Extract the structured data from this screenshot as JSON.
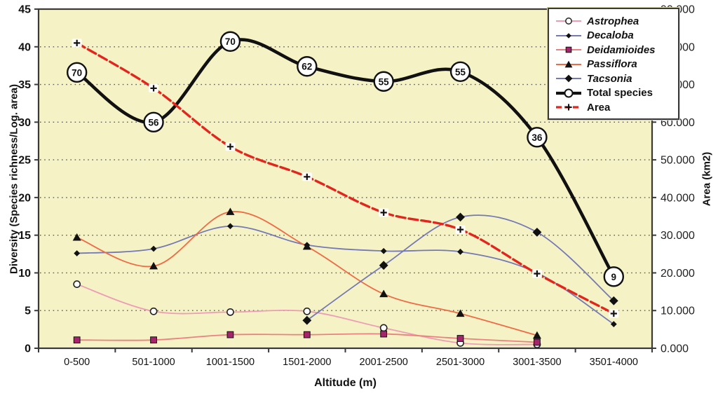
{
  "figure": {
    "type": "line-chart-figure",
    "x_axis_title": "Altitude (m)",
    "y_axis_left_title": "Diversity (Species richness/Log. area)",
    "y_axis_right_title": "Area (km2)"
  },
  "chart_data": {
    "type": "line",
    "title": "",
    "xlabel": "Altitude (m)",
    "ylabel_left": "Diversity (Species richness/Log. area)",
    "ylabel_right": "Area (km2)",
    "categories": [
      "0-500",
      "501-1000",
      "1001-1500",
      "1501-2000",
      "2001-2500",
      "2501-3000",
      "3001-3500",
      "3501-4000"
    ],
    "y_left_axis": {
      "min": 0,
      "max": 45,
      "step": 5,
      "ticks": [
        "0",
        "5",
        "10",
        "15",
        "20",
        "25",
        "30",
        "35",
        "40",
        "45"
      ]
    },
    "y_right_axis": {
      "min": 0,
      "max": 90000,
      "step": 10000,
      "ticks": [
        "0.000",
        "10.000",
        "20.000",
        "30.000",
        "40.000",
        "50.000",
        "60.000",
        "70.000",
        "80.000",
        "90.000"
      ]
    },
    "grid": "horizontal-dotted",
    "legend_position": "top-right",
    "plot_bg_color": "#f5f3c5",
    "grid_color": "#5a5a5a",
    "series": [
      {
        "name": "Astrophea",
        "axis": "left",
        "color": "#ee9cb6",
        "marker": "open-circle",
        "line_width": 1.8,
        "italic": true,
        "values": [
          8.5,
          4.9,
          4.8,
          4.9,
          2.7,
          0.7,
          0.5,
          null
        ]
      },
      {
        "name": "Decaloba",
        "axis": "left",
        "color": "#7479b5",
        "marker": "small-diamond",
        "line_width": 1.8,
        "italic": true,
        "values": [
          12.6,
          13.2,
          16.2,
          13.7,
          12.9,
          12.8,
          10.0,
          3.2
        ]
      },
      {
        "name": "Deidamioides",
        "axis": "left",
        "color": "#ec8080",
        "marker": "square",
        "marker_color": "#a6246c",
        "line_width": 1.8,
        "italic": true,
        "values": [
          1.1,
          1.1,
          1.8,
          1.8,
          1.9,
          1.3,
          0.8,
          null
        ]
      },
      {
        "name": "Passiflora",
        "axis": "left",
        "color": "#ef6b45",
        "marker": "triangle",
        "line_width": 1.8,
        "italic": true,
        "values": [
          14.7,
          10.9,
          18.1,
          13.5,
          7.2,
          4.6,
          1.7,
          null
        ]
      },
      {
        "name": "Tacsonia",
        "axis": "left",
        "color": "#7479b5",
        "marker": "diamond",
        "line_width": 1.8,
        "italic": true,
        "values": [
          null,
          null,
          null,
          3.7,
          11.0,
          17.4,
          15.4,
          6.3
        ]
      },
      {
        "name": "Total species",
        "axis": "left",
        "color": "#111111",
        "marker": "numbered-circle",
        "line_width": 4.6,
        "italic": false,
        "values": [
          36.6,
          30.0,
          40.7,
          37.4,
          35.4,
          36.7,
          28.0,
          9.5
        ],
        "point_labels": [
          "70",
          "56",
          "70",
          "62",
          "55",
          "55",
          "36",
          "9"
        ]
      },
      {
        "name": "Area",
        "axis": "right",
        "color": "#e2261e",
        "marker": "plus",
        "line_width": 3.4,
        "dashed": true,
        "italic": false,
        "values": [
          81000,
          69000,
          53500,
          45500,
          36000,
          31500,
          19800,
          9200
        ]
      }
    ]
  }
}
